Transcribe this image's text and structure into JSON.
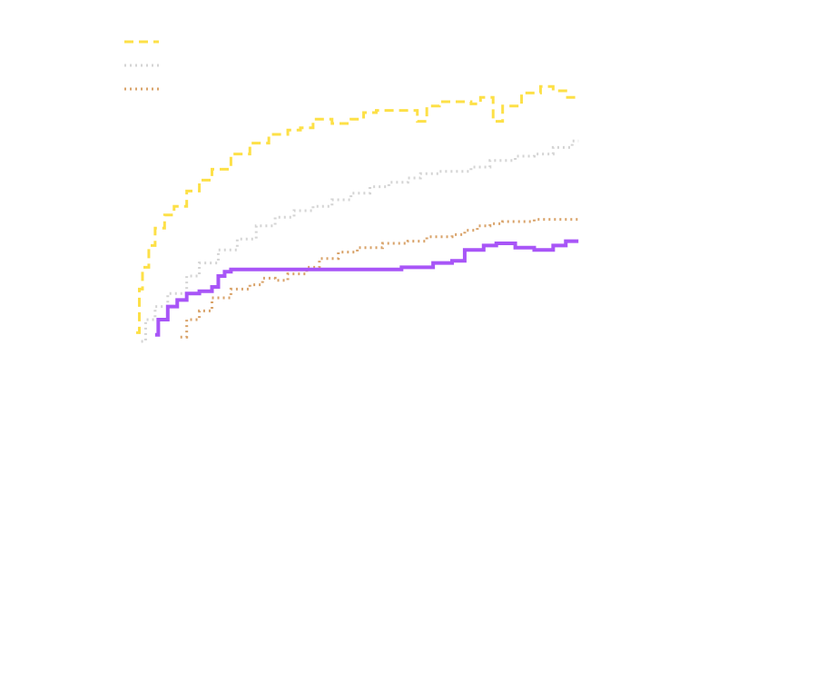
{
  "chart_data": {
    "type": "line",
    "title": "",
    "xlabel": "",
    "ylabel": "",
    "grid": false,
    "legend_position": "top-left",
    "xlim": [
      0,
      1
    ],
    "ylim": [
      0,
      1
    ],
    "series": [
      {
        "color": "#FDE047",
        "dash": "dashed",
        "points": [
          [
            0.0,
            0.32
          ],
          [
            0.005,
            0.42
          ],
          [
            0.01,
            0.47
          ],
          [
            0.02,
            0.52
          ],
          [
            0.03,
            0.56
          ],
          [
            0.045,
            0.59
          ],
          [
            0.06,
            0.61
          ],
          [
            0.08,
            0.645
          ],
          [
            0.1,
            0.67
          ],
          [
            0.12,
            0.695
          ],
          [
            0.15,
            0.73
          ],
          [
            0.18,
            0.755
          ],
          [
            0.21,
            0.775
          ],
          [
            0.24,
            0.785
          ],
          [
            0.26,
            0.79
          ],
          [
            0.28,
            0.81
          ],
          [
            0.31,
            0.8
          ],
          [
            0.34,
            0.81
          ],
          [
            0.36,
            0.825
          ],
          [
            0.38,
            0.83
          ],
          [
            0.41,
            0.83
          ],
          [
            0.44,
            0.83
          ],
          [
            0.445,
            0.805
          ],
          [
            0.46,
            0.84
          ],
          [
            0.48,
            0.85
          ],
          [
            0.5,
            0.85
          ],
          [
            0.53,
            0.845
          ],
          [
            0.545,
            0.86
          ],
          [
            0.565,
            0.805
          ],
          [
            0.58,
            0.84
          ],
          [
            0.61,
            0.87
          ],
          [
            0.64,
            0.885
          ],
          [
            0.66,
            0.875
          ],
          [
            0.68,
            0.86
          ],
          [
            0.7,
            0.855
          ]
        ]
      },
      {
        "color": "#D4D4D4",
        "dash": "dotted",
        "points": [
          [
            0.008,
            0.3
          ],
          [
            0.015,
            0.35
          ],
          [
            0.03,
            0.38
          ],
          [
            0.05,
            0.41
          ],
          [
            0.08,
            0.45
          ],
          [
            0.1,
            0.48
          ],
          [
            0.13,
            0.51
          ],
          [
            0.16,
            0.535
          ],
          [
            0.19,
            0.565
          ],
          [
            0.22,
            0.585
          ],
          [
            0.25,
            0.6
          ],
          [
            0.28,
            0.61
          ],
          [
            0.31,
            0.625
          ],
          [
            0.34,
            0.64
          ],
          [
            0.37,
            0.655
          ],
          [
            0.4,
            0.665
          ],
          [
            0.43,
            0.675
          ],
          [
            0.45,
            0.685
          ],
          [
            0.48,
            0.69
          ],
          [
            0.5,
            0.69
          ],
          [
            0.53,
            0.7
          ],
          [
            0.56,
            0.715
          ],
          [
            0.6,
            0.725
          ],
          [
            0.63,
            0.73
          ],
          [
            0.66,
            0.745
          ],
          [
            0.69,
            0.76
          ],
          [
            0.7,
            0.76
          ]
        ]
      },
      {
        "color": "#D9A36A",
        "dash": "dotted",
        "points": [
          [
            0.07,
            0.31
          ],
          [
            0.08,
            0.35
          ],
          [
            0.1,
            0.37
          ],
          [
            0.12,
            0.4
          ],
          [
            0.15,
            0.42
          ],
          [
            0.18,
            0.43
          ],
          [
            0.2,
            0.445
          ],
          [
            0.22,
            0.44
          ],
          [
            0.24,
            0.455
          ],
          [
            0.27,
            0.47
          ],
          [
            0.29,
            0.49
          ],
          [
            0.32,
            0.505
          ],
          [
            0.35,
            0.515
          ],
          [
            0.39,
            0.525
          ],
          [
            0.43,
            0.53
          ],
          [
            0.46,
            0.54
          ],
          [
            0.5,
            0.545
          ],
          [
            0.52,
            0.555
          ],
          [
            0.54,
            0.565
          ],
          [
            0.56,
            0.57
          ],
          [
            0.58,
            0.575
          ],
          [
            0.6,
            0.575
          ],
          [
            0.63,
            0.58
          ],
          [
            0.7,
            0.58
          ]
        ]
      },
      {
        "color": "#A855F7",
        "dash": "solid",
        "points": [
          [
            0.03,
            0.315
          ],
          [
            0.035,
            0.35
          ],
          [
            0.05,
            0.38
          ],
          [
            0.065,
            0.395
          ],
          [
            0.08,
            0.41
          ],
          [
            0.1,
            0.415
          ],
          [
            0.12,
            0.425
          ],
          [
            0.13,
            0.45
          ],
          [
            0.14,
            0.46
          ],
          [
            0.15,
            0.465
          ],
          [
            0.21,
            0.465
          ],
          [
            0.3,
            0.465
          ],
          [
            0.35,
            0.465
          ],
          [
            0.4,
            0.465
          ],
          [
            0.42,
            0.47
          ],
          [
            0.46,
            0.47
          ],
          [
            0.47,
            0.48
          ],
          [
            0.5,
            0.485
          ],
          [
            0.52,
            0.51
          ],
          [
            0.55,
            0.52
          ],
          [
            0.57,
            0.525
          ],
          [
            0.6,
            0.515
          ],
          [
            0.63,
            0.51
          ],
          [
            0.66,
            0.52
          ],
          [
            0.68,
            0.53
          ],
          [
            0.7,
            0.53
          ]
        ]
      }
    ]
  }
}
